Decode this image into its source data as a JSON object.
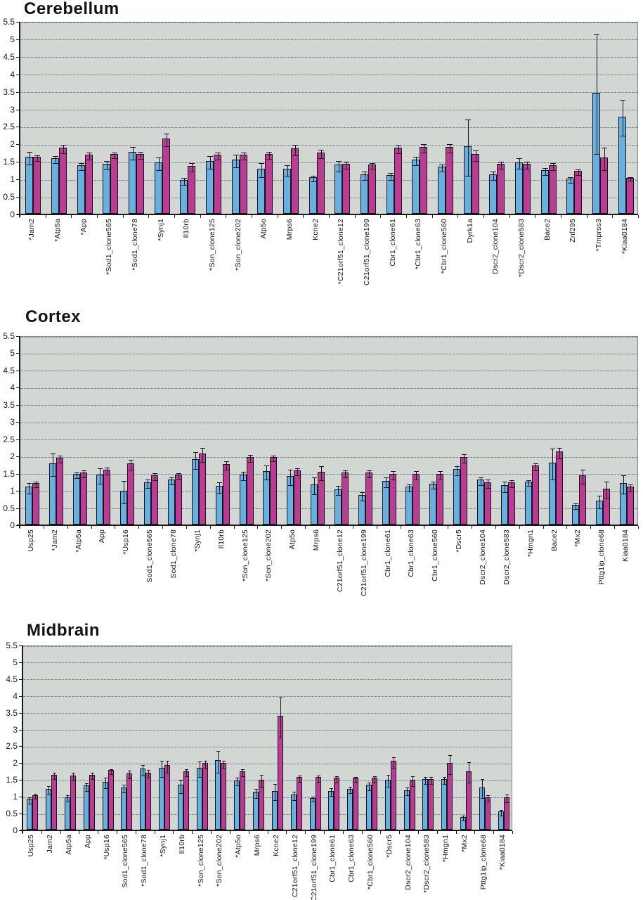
{
  "figure": {
    "background": "#ffffff",
    "plot_background": "#d3d7d3",
    "gridline_color": "#7c8694",
    "axis_color": "#1a1a1f",
    "bar_blue": "#68b0e0",
    "bar_magenta": "#bc3c94"
  },
  "chart_data": [
    {
      "type": "bar",
      "title": "Cerebellum",
      "ylabel": "",
      "xlabel": "",
      "ylim": [
        0,
        5.5
      ],
      "yticks": [
        "0",
        "0.5",
        "1",
        "1.5",
        "2",
        "2.5",
        "3",
        "3.5",
        "4",
        "4.5",
        "5",
        "5.5"
      ],
      "grid": true,
      "legend": "none",
      "categories": [
        "*Jam2",
        "*Atp5a",
        "*App",
        "*Sod1_clone565",
        "*Sod1_clone78",
        "*Synj1",
        "Il10rb",
        "*Son_clone125",
        "*Son_clone202",
        "Atp5o",
        "Mrps6",
        "Kcne2",
        "*C21orf51_clone12",
        "C21orf51_clone199",
        "Cbr1_clone61",
        "*Cbr1_clone63",
        "*Cbr1_clone560",
        "Dyrk1a",
        "Dscr2_clone104",
        "*Dscr2_clone583",
        "Bace2",
        "Znf295",
        "*Tmprss3",
        "*Kiaa0184"
      ],
      "series": [
        {
          "name": "blue",
          "color": "#68b0e0",
          "values": [
            1.62,
            1.58,
            1.38,
            1.43,
            1.76,
            1.46,
            0.97,
            1.5,
            1.55,
            1.28,
            1.28,
            1.05,
            1.4,
            1.12,
            1.1,
            1.55,
            1.35,
            1.93,
            1.12,
            1.47,
            1.25,
            1.0,
            3.45,
            2.78
          ],
          "errors": [
            0.18,
            0.1,
            0.1,
            0.12,
            0.18,
            0.18,
            0.1,
            0.18,
            0.18,
            0.2,
            0.15,
            0.08,
            0.15,
            0.12,
            0.1,
            0.12,
            0.1,
            0.8,
            0.12,
            0.15,
            0.1,
            0.08,
            1.7,
            0.52
          ]
        },
        {
          "name": "magenta",
          "color": "#bc3c94",
          "values": [
            1.62,
            1.88,
            1.68,
            1.71,
            1.7,
            2.15,
            1.36,
            1.68,
            1.68,
            1.7,
            1.86,
            1.75,
            1.42,
            1.4,
            1.88,
            1.9,
            1.9,
            1.7,
            1.43,
            1.43,
            1.38,
            1.22,
            1.6,
            1.03
          ],
          "errors": [
            0.08,
            0.12,
            0.1,
            0.08,
            0.1,
            0.18,
            0.12,
            0.1,
            0.1,
            0.1,
            0.15,
            0.12,
            0.1,
            0.08,
            0.12,
            0.12,
            0.12,
            0.15,
            0.1,
            0.1,
            0.1,
            0.08,
            0.32,
            0.05
          ]
        }
      ]
    },
    {
      "type": "bar",
      "title": "Cortex",
      "ylabel": "",
      "xlabel": "",
      "ylim": [
        0,
        5.5
      ],
      "yticks": [
        "0",
        "0.5",
        "1",
        "1.5",
        "2",
        "2.5",
        "3",
        "3.5",
        "4",
        "4.5",
        "5",
        "5.5"
      ],
      "grid": true,
      "legend": "none",
      "categories": [
        "Usp25",
        "*Jam2",
        "*Atp5a",
        "App",
        "*Usp16",
        "Sod1_clone565",
        "Sod1_clone78",
        "*Synj1",
        "Il10rb",
        "*Son_clone125",
        "*Son_clone202",
        "Atp5o",
        "Mrps6",
        "C21orf51_clone12",
        "C21orf51_clone199",
        "Cbr1_clone61",
        "Cbr1_clone63",
        "Cbr1_clone560",
        "*Dscr5",
        "Dscr2_clone104",
        "Dscr2_clone583",
        "*Hmgn1",
        "Bace2",
        "*Mx2",
        "Pttg1ip_clone68",
        "Kiaa0184"
      ],
      "series": [
        {
          "name": "blue",
          "color": "#68b0e0",
          "values": [
            1.1,
            1.78,
            1.47,
            1.45,
            0.98,
            1.23,
            1.31,
            1.9,
            1.12,
            1.45,
            1.55,
            1.41,
            1.17,
            1.03,
            0.86,
            1.27,
            1.1,
            1.18,
            1.61,
            1.3,
            1.14,
            1.25,
            1.8,
            0.57,
            0.69,
            1.21
          ],
          "errors": [
            0.15,
            0.33,
            0.08,
            0.23,
            0.32,
            0.12,
            0.1,
            0.25,
            0.15,
            0.13,
            0.2,
            0.22,
            0.25,
            0.13,
            0.12,
            0.15,
            0.1,
            0.1,
            0.13,
            0.12,
            0.15,
            0.08,
            0.45,
            0.08,
            0.18,
            0.27
          ]
        },
        {
          "name": "magenta",
          "color": "#bc3c94",
          "values": [
            1.2,
            1.94,
            1.51,
            1.6,
            1.78,
            1.43,
            1.45,
            2.07,
            1.76,
            1.96,
            1.96,
            1.57,
            1.53,
            1.51,
            1.51,
            1.47,
            1.47,
            1.47,
            1.97,
            1.23,
            1.23,
            1.72,
            2.12,
            1.43,
            1.04,
            1.1
          ],
          "errors": [
            0.08,
            0.1,
            0.1,
            0.1,
            0.15,
            0.1,
            0.08,
            0.2,
            0.12,
            0.1,
            0.08,
            0.1,
            0.2,
            0.1,
            0.1,
            0.12,
            0.12,
            0.12,
            0.12,
            0.12,
            0.1,
            0.1,
            0.15,
            0.2,
            0.25,
            0.1
          ]
        }
      ]
    },
    {
      "type": "bar",
      "title": "Midbrain",
      "ylabel": "",
      "xlabel": "",
      "ylim": [
        0,
        5.5
      ],
      "yticks": [
        "0",
        "0.5",
        "1",
        "1.5",
        "2",
        "2.5",
        "3",
        "3.5",
        "4",
        "4.5",
        "5",
        "5.5"
      ],
      "grid": true,
      "legend": "none",
      "categories": [
        "Usp25",
        "Jam2",
        "Atp5a",
        "App",
        "*Usp16",
        "Sod1_clone565",
        "*Sod1_clone78",
        "*Synj1",
        "Il10rb",
        "*Son_clone125",
        "*Son_clone202",
        "*Atp5o",
        "Mrps6",
        "Kcne2",
        "C21orf51_clone12",
        "C21orf51_clone199",
        "Cbr1_clone61",
        "Cbr1_clone63",
        "*Cbr1_clone560",
        "*Dscr5",
        "Dscr2_clone104",
        "*Dscr2_clone583",
        "*Hmgn1",
        "*Mx2",
        "Pttg1ip_clone68",
        "*Kiaa0184"
      ],
      "series": [
        {
          "name": "blue",
          "color": "#68b0e0",
          "values": [
            0.91,
            1.22,
            0.97,
            1.31,
            1.43,
            1.26,
            1.81,
            1.85,
            1.33,
            1.85,
            2.06,
            1.47,
            1.12,
            1.16,
            1.05,
            0.95,
            1.16,
            1.22,
            1.33,
            1.49,
            1.18,
            1.51,
            1.51,
            0.38,
            1.26,
            0.55
          ],
          "errors": [
            0.1,
            0.12,
            0.1,
            0.12,
            0.15,
            0.12,
            0.15,
            0.25,
            0.2,
            0.23,
            0.33,
            0.12,
            0.13,
            0.25,
            0.12,
            0.08,
            0.12,
            0.1,
            0.12,
            0.18,
            0.12,
            0.1,
            0.1,
            0.07,
            0.28,
            0.08
          ]
        },
        {
          "name": "magenta",
          "color": "#bc3c94",
          "values": [
            1.03,
            1.64,
            1.62,
            1.64,
            1.77,
            1.68,
            1.7,
            1.92,
            1.73,
            1.98,
            1.98,
            1.73,
            1.49,
            3.38,
            1.56,
            1.56,
            1.54,
            1.54,
            1.54,
            2.04,
            1.49,
            1.51,
            1.98,
            1.74,
            0.97,
            0.97
          ],
          "errors": [
            0.07,
            0.1,
            0.12,
            0.1,
            0.08,
            0.12,
            0.12,
            0.18,
            0.1,
            0.12,
            0.12,
            0.1,
            0.18,
            0.6,
            0.1,
            0.1,
            0.1,
            0.08,
            0.1,
            0.15,
            0.15,
            0.1,
            0.28,
            0.3,
            0.1,
            0.12
          ]
        }
      ]
    }
  ]
}
